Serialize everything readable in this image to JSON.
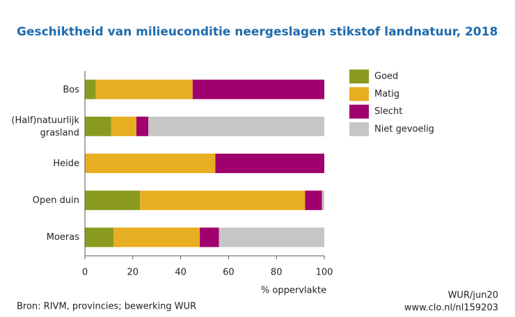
{
  "chart_data": {
    "type": "stacked-barh",
    "title": "Geschiktheid van milieuconditie neergeslagen stikstof landnatuur, 2018",
    "categories": [
      "Bos",
      "(Half)natuurlijk grasland",
      "Heide",
      "Open duin",
      "Moeras"
    ],
    "series": [
      {
        "name": "Goed",
        "color": "#8a9a1e",
        "values": [
          4.5,
          11,
          0,
          23,
          12
        ]
      },
      {
        "name": "Matig",
        "color": "#e8ae21",
        "values": [
          40.5,
          10.5,
          54.5,
          69,
          36
        ]
      },
      {
        "name": "Slecht",
        "color": "#a0006e",
        "values": [
          55,
          5,
          45.5,
          7,
          8
        ]
      },
      {
        "name": "Niet gevoelig",
        "color": "#c6c6c6",
        "values": [
          0,
          73.5,
          0,
          1,
          44
        ]
      }
    ],
    "xlim": [
      0,
      100
    ],
    "xticks": [
      0,
      20,
      40,
      60,
      80,
      100
    ],
    "xlabel": "% oppervlakte",
    "source": "Bron: RIVM, provincies; bewerking WUR",
    "credit": [
      "WUR/jun20",
      "www.clo.nl/nl159203"
    ]
  }
}
